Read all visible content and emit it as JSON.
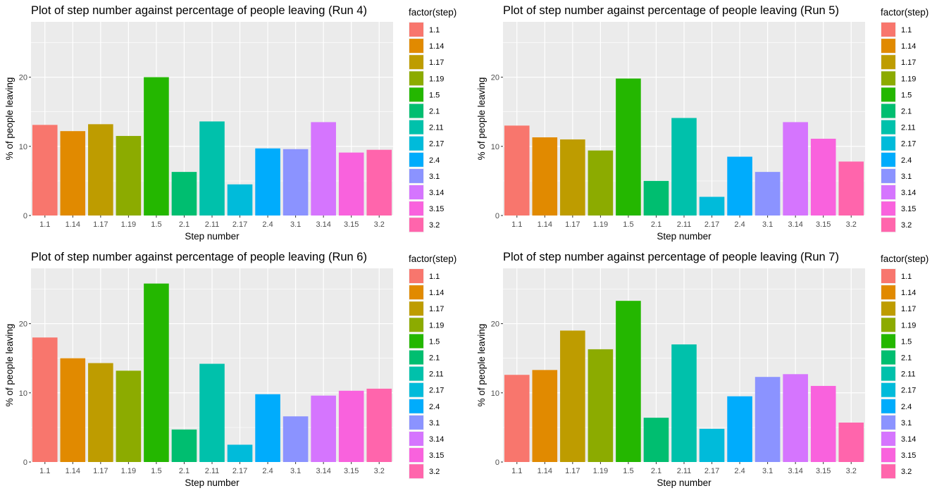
{
  "chart_data": [
    {
      "type": "bar",
      "title": "Plot of step number against percentage of people leaving (Run 4)",
      "xlabel": "Step number",
      "ylabel": "% of people leaving",
      "ylim": [
        0,
        28
      ],
      "yticks": [
        0,
        10,
        20
      ],
      "grid": true,
      "legend_title": "factor(step)",
      "legend_position": "right",
      "categories": [
        "1.1",
        "1.14",
        "1.17",
        "1.19",
        "1.5",
        "2.1",
        "2.11",
        "2.17",
        "2.4",
        "3.1",
        "3.14",
        "3.15",
        "3.2"
      ],
      "values": [
        13.1,
        12.2,
        13.2,
        11.5,
        20.0,
        6.3,
        13.6,
        4.5,
        9.7,
        9.6,
        13.5,
        9.1,
        9.5
      ]
    },
    {
      "type": "bar",
      "title": "Plot of step number against percentage of people leaving (Run 5)",
      "xlabel": "Step number",
      "ylabel": "% of people leaving",
      "ylim": [
        0,
        28
      ],
      "yticks": [
        0,
        10,
        20
      ],
      "grid": true,
      "legend_title": "factor(step)",
      "legend_position": "right",
      "categories": [
        "1.1",
        "1.14",
        "1.17",
        "1.19",
        "1.5",
        "2.1",
        "2.11",
        "2.17",
        "2.4",
        "3.1",
        "3.14",
        "3.15",
        "3.2"
      ],
      "values": [
        13.0,
        11.3,
        11.0,
        9.4,
        19.8,
        5.0,
        14.1,
        2.7,
        8.5,
        6.3,
        13.5,
        11.1,
        7.8
      ]
    },
    {
      "type": "bar",
      "title": "Plot of step number against percentage of people leaving (Run 6)",
      "xlabel": "Step number",
      "ylabel": "% of people leaving",
      "ylim": [
        0,
        28
      ],
      "yticks": [
        0,
        10,
        20
      ],
      "grid": true,
      "legend_title": "factor(step)",
      "legend_position": "right",
      "categories": [
        "1.1",
        "1.14",
        "1.17",
        "1.19",
        "1.5",
        "2.1",
        "2.11",
        "2.17",
        "2.4",
        "3.1",
        "3.14",
        "3.15",
        "3.2"
      ],
      "values": [
        18.0,
        15.0,
        14.3,
        13.2,
        25.8,
        4.7,
        14.2,
        2.5,
        9.8,
        6.6,
        9.6,
        10.3,
        10.6
      ]
    },
    {
      "type": "bar",
      "title": "Plot of step number against percentage of people leaving (Run 7)",
      "xlabel": "Step number",
      "ylabel": "% of people leaving",
      "ylim": [
        0,
        28
      ],
      "yticks": [
        0,
        10,
        20
      ],
      "grid": true,
      "legend_title": "factor(step)",
      "legend_position": "right",
      "categories": [
        "1.1",
        "1.14",
        "1.17",
        "1.19",
        "1.5",
        "2.1",
        "2.11",
        "2.17",
        "2.4",
        "3.1",
        "3.14",
        "3.15",
        "3.2"
      ],
      "values": [
        12.6,
        13.3,
        19.0,
        16.3,
        23.3,
        6.4,
        17.0,
        4.8,
        9.5,
        12.3,
        12.7,
        11.0,
        5.7
      ]
    }
  ],
  "colors": {
    "1.1": "#F8766D",
    "1.14": "#E18A00",
    "1.17": "#BE9C00",
    "1.19": "#8CAB00",
    "1.5": "#24B700",
    "2.1": "#00BE70",
    "2.11": "#00C1AB",
    "2.17": "#00BBDA",
    "2.4": "#00ACFC",
    "3.1": "#8B93FF",
    "3.14": "#D575FE",
    "3.15": "#F962DD",
    "3.2": "#FF65AC"
  },
  "panel_background": "#EBEBEB",
  "grid_color": "#FFFFFF"
}
